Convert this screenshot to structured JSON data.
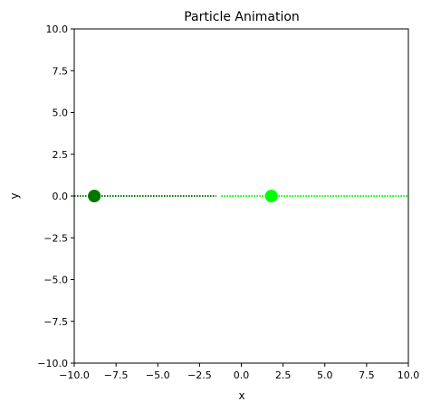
{
  "chart_data": {
    "type": "scatter",
    "title": "Particle Animation",
    "xlabel": "x",
    "ylabel": "y",
    "xlim": [
      -10,
      10
    ],
    "ylim": [
      -10,
      10
    ],
    "x_ticks": [
      "−10.0",
      "−7.5",
      "−5.0",
      "−2.5",
      "0.0",
      "2.5",
      "5.0",
      "7.5",
      "10.0"
    ],
    "x_tick_values": [
      -10,
      -7.5,
      -5,
      -2.5,
      0,
      2.5,
      5,
      7.5,
      10
    ],
    "y_ticks": [
      "10.0",
      "7.5",
      "5.0",
      "2.5",
      "0.0",
      "−2.5",
      "−5.0",
      "−7.5",
      "−10.0"
    ],
    "y_tick_values": [
      10,
      7.5,
      5,
      2.5,
      0,
      -2.5,
      -5,
      -7.5,
      -10
    ],
    "grid": false,
    "series": [
      {
        "color": "#007700",
        "points": [
          {
            "x": -8.8,
            "y": 0
          }
        ],
        "trail": {
          "x_start": -10,
          "x_end": -1.5,
          "y": 0
        }
      },
      {
        "color": "#00ff00",
        "points": [
          {
            "x": 1.8,
            "y": 0
          }
        ],
        "trail": {
          "x_start": -1.2,
          "x_end": 10,
          "y": 0
        }
      }
    ]
  }
}
